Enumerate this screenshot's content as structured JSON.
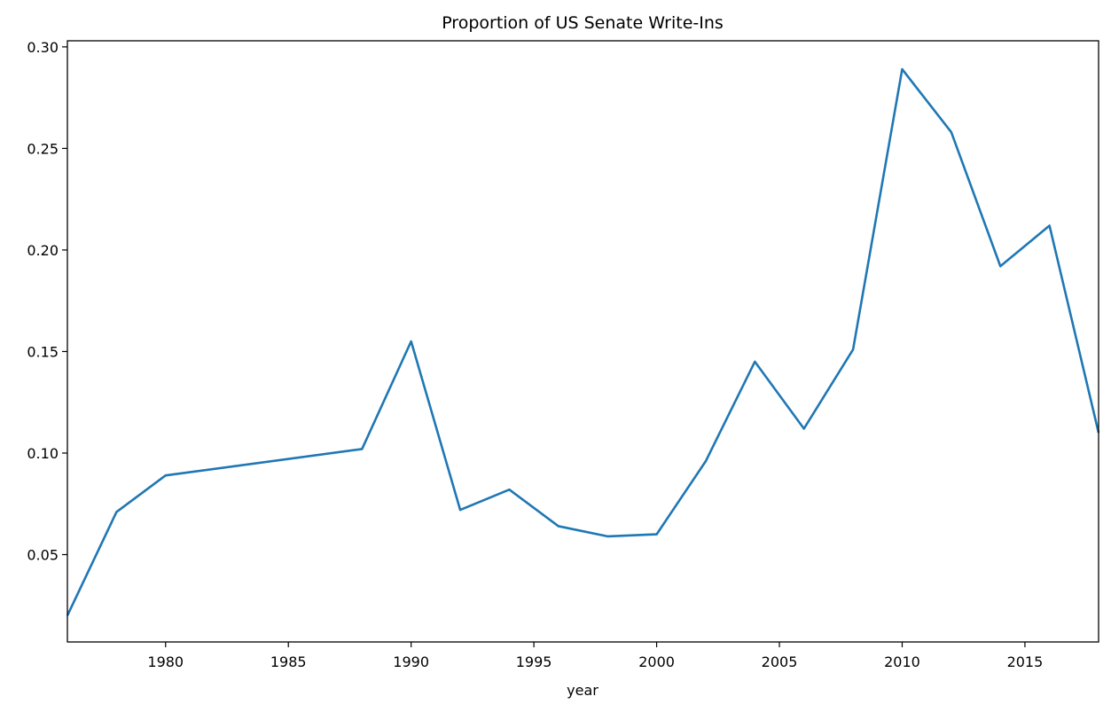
{
  "chart_data": {
    "type": "line",
    "title": "Proportion of US Senate Write-Ins",
    "xlabel": "year",
    "ylabel": "",
    "xlim": [
      1976,
      2018
    ],
    "ylim": [
      0.007,
      0.303
    ],
    "xticks": [
      1980,
      1985,
      1990,
      1995,
      2000,
      2005,
      2010,
      2015
    ],
    "yticks": [
      0.05,
      0.1,
      0.15,
      0.2,
      0.25,
      0.3
    ],
    "ytick_labels": [
      "0.05",
      "0.10",
      "0.15",
      "0.20",
      "0.25",
      "0.30"
    ],
    "grid": false,
    "color": "#1f77b4",
    "series": [
      {
        "x": [
          1976,
          1978,
          1980,
          1988,
          1990,
          1992,
          1994,
          1996,
          1998,
          2000,
          2002,
          2004,
          2006,
          2008,
          2010,
          2012,
          2014,
          2016,
          2018
        ],
        "y": [
          0.02,
          0.071,
          0.089,
          0.102,
          0.155,
          0.072,
          0.082,
          0.064,
          0.059,
          0.06,
          0.096,
          0.145,
          0.112,
          0.151,
          0.289,
          0.258,
          0.192,
          0.212,
          0.11
        ]
      }
    ]
  }
}
